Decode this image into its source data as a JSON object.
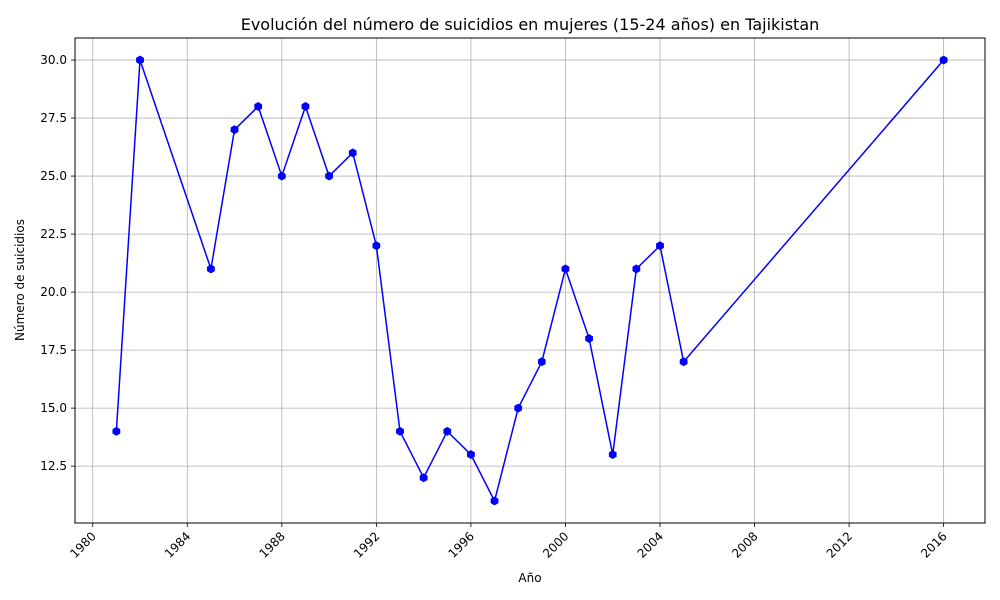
{
  "chart_data": {
    "type": "line",
    "title": "Evolución del número de suicidios en mujeres (15-24 años) en Tajikistan",
    "xlabel": "Año",
    "ylabel": "Número de suicidios",
    "x": [
      1981,
      1982,
      1985,
      1986,
      1987,
      1988,
      1989,
      1990,
      1991,
      1992,
      1993,
      1994,
      1995,
      1996,
      1997,
      1998,
      1999,
      2000,
      2001,
      2002,
      2003,
      2004,
      2005,
      2016
    ],
    "series": [
      {
        "values": [
          14,
          30,
          21,
          27,
          28,
          25,
          28,
          25,
          26,
          22,
          14,
          12,
          14,
          13,
          11,
          15,
          17,
          21,
          18,
          13,
          21,
          22,
          17,
          30
        ],
        "color": "#0000ff"
      }
    ],
    "xlim": [
      1979.25,
      2017.75
    ],
    "ylim": [
      10.05,
      30.95
    ],
    "xticks": [
      1980,
      1984,
      1988,
      1992,
      1996,
      2000,
      2004,
      2008,
      2012,
      2016
    ],
    "yticks": [
      "12.5",
      "15.0",
      "17.5",
      "20.0",
      "22.5",
      "25.0",
      "27.5",
      "30.0"
    ],
    "grid": true,
    "marker": "hexagon"
  }
}
